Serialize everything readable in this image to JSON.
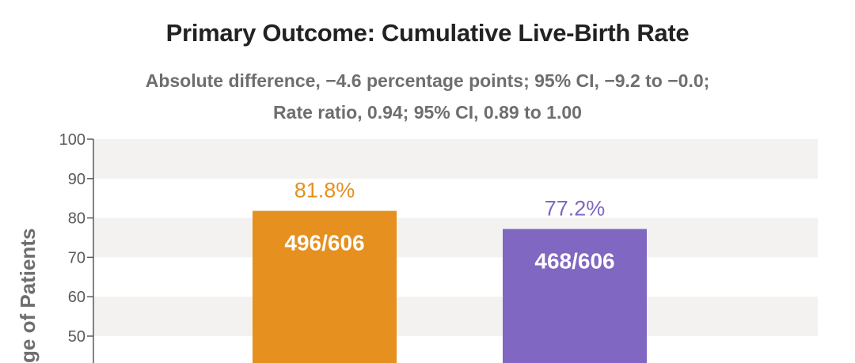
{
  "chart_data": {
    "type": "bar",
    "title": "Primary Outcome: Cumulative Live-Birth Rate",
    "subtitle": [
      "Absolute difference, −4.6 percentage points; 95% CI, −9.2 to −0.0;",
      "Rate ratio, 0.94; 95% CI, 0.89 to 1.00"
    ],
    "ylabel": "ge of Patients",
    "ylim": [
      0,
      100
    ],
    "yticks": [
      "100",
      "90",
      "80",
      "70",
      "60",
      "50"
    ],
    "categories": [
      "",
      ""
    ],
    "values": [
      81.8,
      77.2
    ],
    "value_labels": [
      "81.8%",
      "77.2%"
    ],
    "count_labels": [
      "496/606",
      "468/606"
    ],
    "colors": [
      "#e5901f",
      "#7f67c2"
    ],
    "grid": "alternating bands"
  }
}
